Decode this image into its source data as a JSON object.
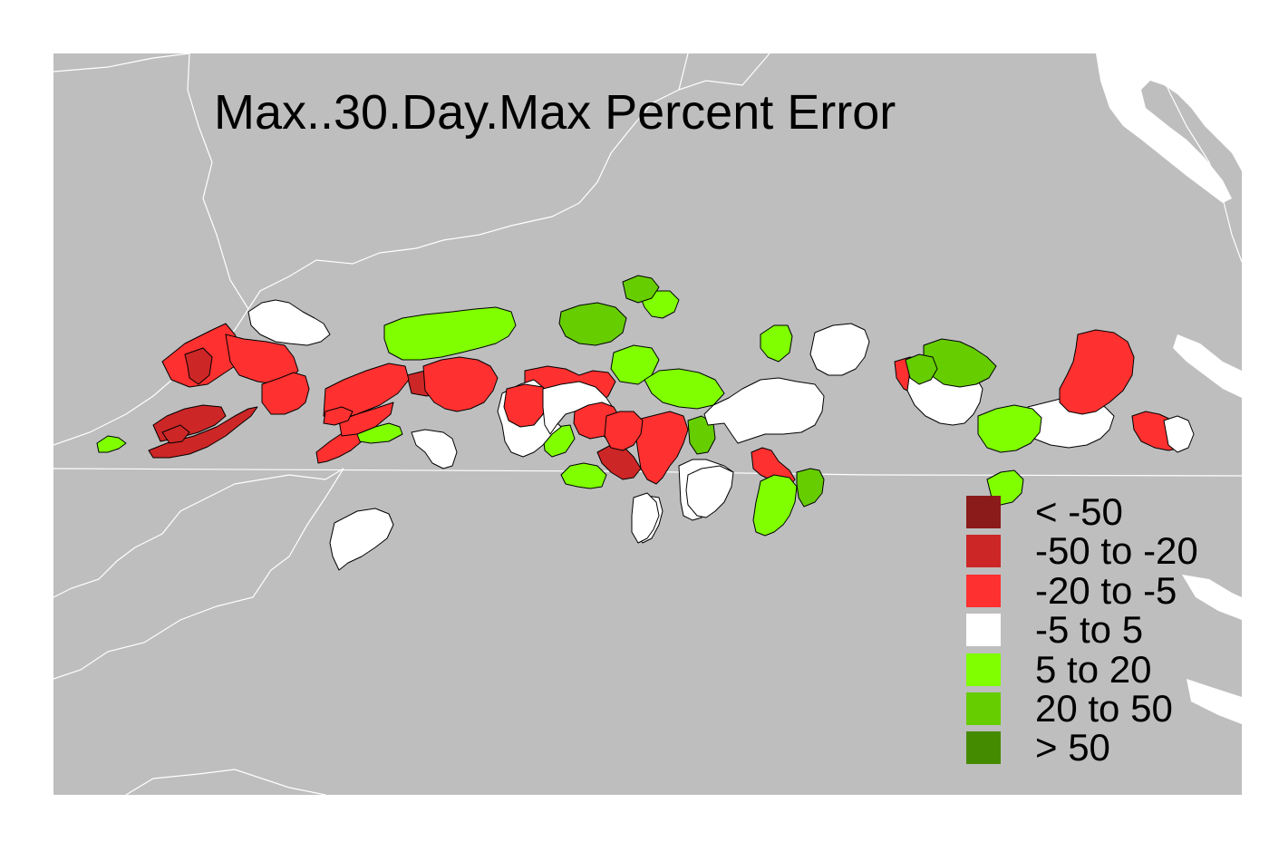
{
  "map": {
    "title": "Max..30.Day.Max Percent Error",
    "background_color": "#bebebe",
    "boundary_color": "#ffffff"
  },
  "legend": {
    "items": [
      {
        "label": "< -50",
        "color": "#8b1a1a"
      },
      {
        "label": "-50 to -20",
        "color": "#cd2626"
      },
      {
        "label": "-20 to -5",
        "color": "#ff3030"
      },
      {
        "label": "-5 to 5",
        "color": "#ffffff"
      },
      {
        "label": "5 to 20",
        "color": "#7fff00"
      },
      {
        "label": "20 to 50",
        "color": "#66cd00"
      },
      {
        "label": "> 50",
        "color": "#458b00"
      }
    ]
  },
  "basins": [
    {
      "id": "b1",
      "cls": 2
    },
    {
      "id": "b2",
      "cls": 1
    },
    {
      "id": "b3",
      "cls": 2
    },
    {
      "id": "b4",
      "cls": 3
    },
    {
      "id": "b5",
      "cls": 1
    },
    {
      "id": "b6",
      "cls": 1
    },
    {
      "id": "b7",
      "cls": 4
    },
    {
      "id": "b8",
      "cls": 2
    },
    {
      "id": "b9",
      "cls": 2
    },
    {
      "id": "b10",
      "cls": 4
    },
    {
      "id": "b11",
      "cls": 4
    },
    {
      "id": "b12",
      "cls": 1
    },
    {
      "id": "b13",
      "cls": 2
    },
    {
      "id": "b14",
      "cls": 2
    },
    {
      "id": "b15",
      "cls": 3
    },
    {
      "id": "b16",
      "cls": 2
    },
    {
      "id": "b17",
      "cls": 4
    },
    {
      "id": "b18",
      "cls": 4
    },
    {
      "id": "b19",
      "cls": 5
    },
    {
      "id": "b20",
      "cls": 4
    },
    {
      "id": "b21",
      "cls": 4
    },
    {
      "id": "b22",
      "cls": 1
    },
    {
      "id": "b23",
      "cls": 2
    },
    {
      "id": "b24",
      "cls": 2
    },
    {
      "id": "b25",
      "cls": 3
    },
    {
      "id": "b26",
      "cls": 3
    },
    {
      "id": "b27",
      "cls": 3
    },
    {
      "id": "b28",
      "cls": 1
    },
    {
      "id": "b29",
      "cls": 3
    },
    {
      "id": "b30",
      "cls": 2
    },
    {
      "id": "b31",
      "cls": 3
    },
    {
      "id": "b32",
      "cls": 3
    },
    {
      "id": "b33",
      "cls": 4
    },
    {
      "id": "b34",
      "cls": 2
    },
    {
      "id": "b35",
      "cls": 3
    },
    {
      "id": "b36",
      "cls": 3
    },
    {
      "id": "b37",
      "cls": 5
    },
    {
      "id": "b38",
      "cls": 4
    },
    {
      "id": "b39",
      "cls": 2
    },
    {
      "id": "b40",
      "cls": 3
    },
    {
      "id": "b41",
      "cls": 3
    },
    {
      "id": "b42",
      "cls": 4
    },
    {
      "id": "b43",
      "cls": 2
    },
    {
      "id": "b44",
      "cls": 5
    },
    {
      "id": "b45",
      "cls": 4
    },
    {
      "id": "b46",
      "cls": 5
    },
    {
      "id": "b47",
      "cls": 2
    },
    {
      "id": "b48",
      "cls": 3
    },
    {
      "id": "b49",
      "cls": 2
    },
    {
      "id": "b50",
      "cls": 3
    },
    {
      "id": "b51",
      "cls": 2
    },
    {
      "id": "b52",
      "cls": 2
    },
    {
      "id": "b53",
      "cls": 5
    }
  ]
}
